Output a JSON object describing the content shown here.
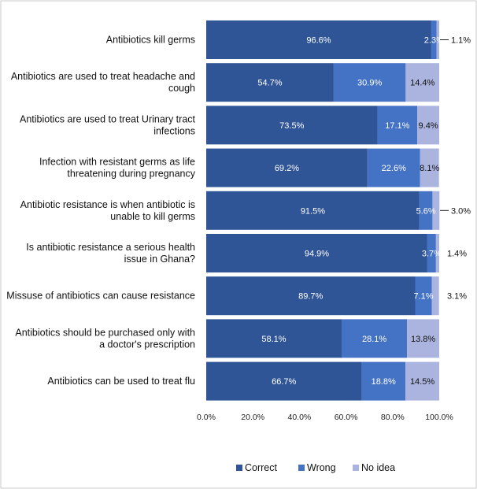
{
  "chart_data": {
    "type": "bar",
    "orientation": "horizontal",
    "stacked": true,
    "categories": [
      [
        "Antibiotics kill germs"
      ],
      [
        "Antibiotics are used to treat headache and",
        "cough"
      ],
      [
        "Antibiotics are used to treat Urinary tract",
        "infections"
      ],
      [
        "Infection with resistant germs  as life",
        "threatening during pregnancy"
      ],
      [
        "Antibiotic resistance is when antibiotic is",
        "unable to kill germs"
      ],
      [
        "Is antibiotic resistance a serious health",
        "issue in Ghana?"
      ],
      [
        "Missuse of antibiotics can cause resistance"
      ],
      [
        "Antibiotics should be purchased only with",
        "a doctor's prescription"
      ],
      [
        "Antibiotics can be used to treat flu"
      ]
    ],
    "series": [
      {
        "name": "Correct",
        "color": "#2f5597",
        "label_color": "#ffffff",
        "values": [
          96.6,
          54.7,
          73.5,
          69.2,
          91.5,
          94.9,
          89.7,
          58.1,
          66.7
        ],
        "labels": [
          "96.6%",
          "54.7%",
          "73.5%",
          "69.2%",
          "91.5%",
          "94.9%",
          "89.7%",
          "58.1%",
          "66.7%"
        ]
      },
      {
        "name": "Wrong",
        "color": "#4472c4",
        "label_color": "#ffffff",
        "values": [
          2.3,
          30.9,
          17.1,
          22.6,
          5.6,
          3.7,
          7.1,
          28.1,
          18.8
        ],
        "labels": [
          "2.3%",
          "30.9%",
          "17.1%",
          "22.6%",
          "5.6%",
          "3.7%",
          "7.1%",
          "28.1%",
          "18.8%"
        ]
      },
      {
        "name": "No idea",
        "color": "#aab4de",
        "label_color": "#111111",
        "values": [
          1.1,
          14.4,
          9.4,
          8.1,
          3.0,
          1.4,
          3.1,
          13.8,
          14.5
        ],
        "labels": [
          "1.1%",
          "14.4%",
          "9.4%",
          "8.1%",
          "3.0%",
          "1.4%",
          "3.1%",
          "13.8%",
          "14.5%"
        ]
      }
    ],
    "outside_labels": [
      {
        "category_index": 0,
        "series": "No idea",
        "text": "1.1%",
        "leader_line": true
      },
      {
        "category_index": 4,
        "series": "No idea",
        "text": "3.0%",
        "leader_line": true
      },
      {
        "category_index": 5,
        "series": "No idea",
        "text": "1.4%",
        "leader_line": false
      },
      {
        "category_index": 6,
        "series": "No idea",
        "text": "3.1%",
        "leader_line": false
      }
    ],
    "xlim": [
      0,
      100
    ],
    "x_ticks": [
      0,
      20,
      40,
      60,
      80,
      100
    ],
    "x_tick_labels": [
      "0.0%",
      "20.0%",
      "40.0%",
      "60.0%",
      "80.0%",
      "100.0%"
    ],
    "grid": false,
    "legend_position": "bottom",
    "title": "",
    "xlabel": "",
    "ylabel": ""
  }
}
